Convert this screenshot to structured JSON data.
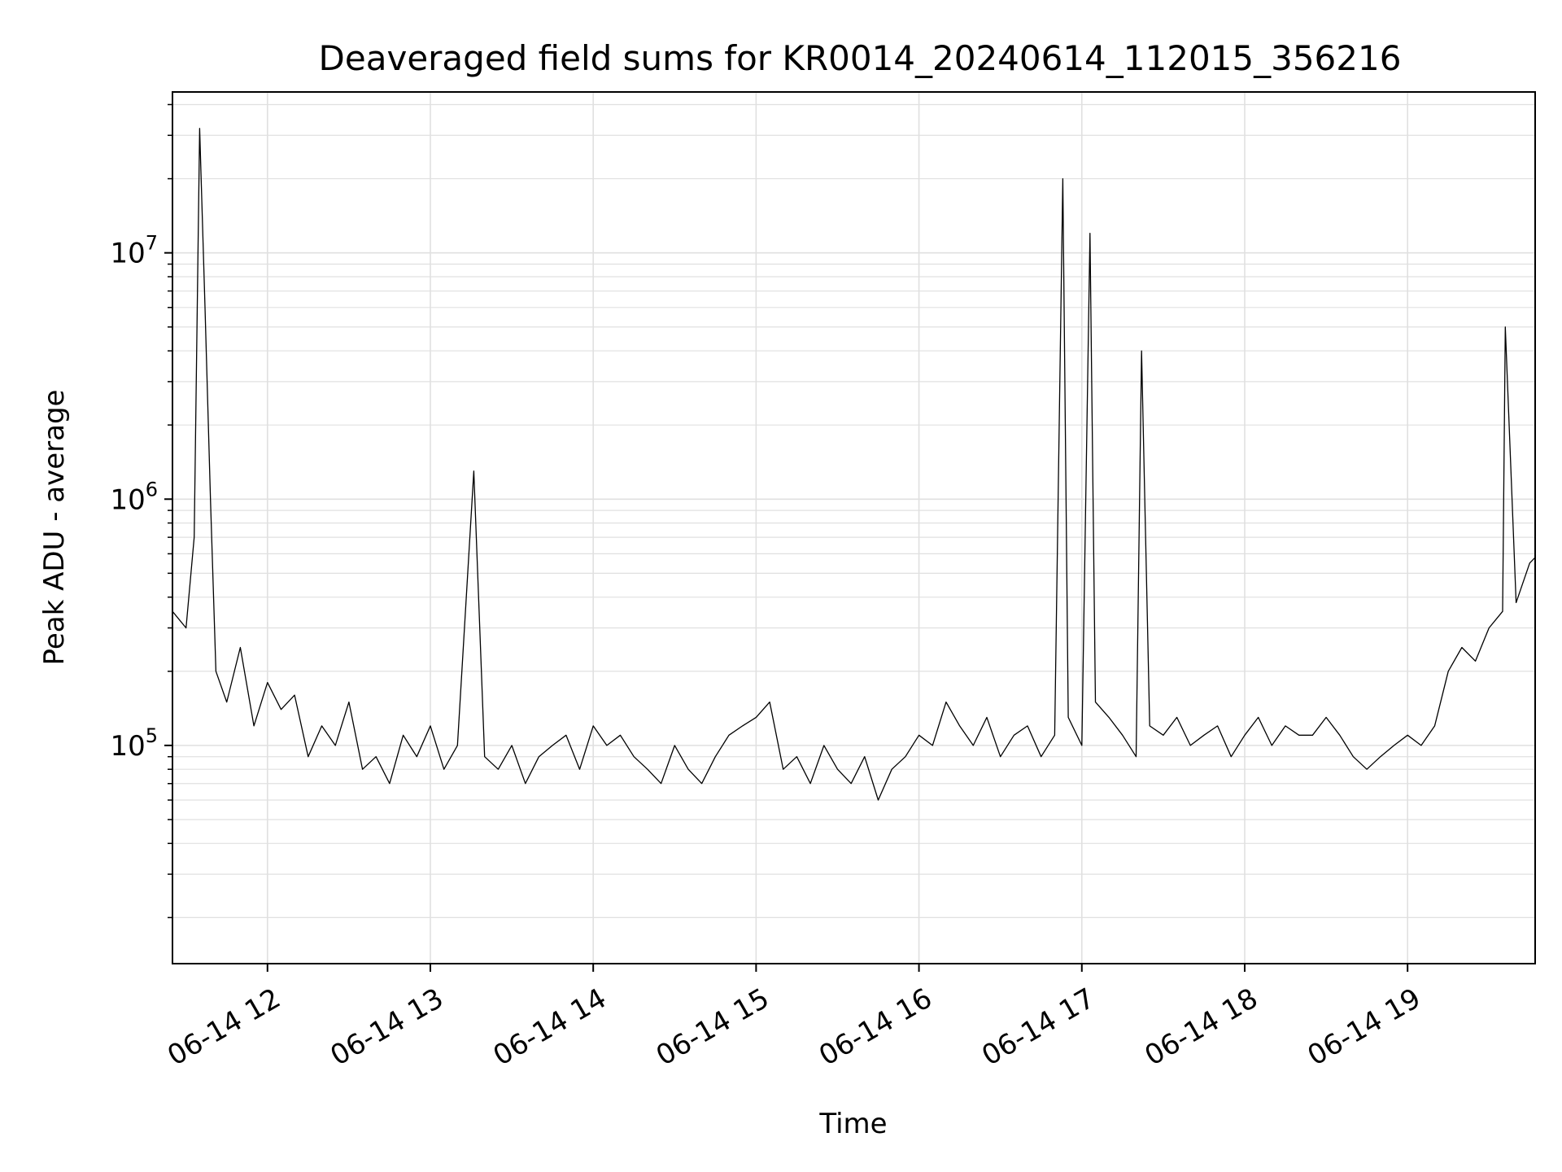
{
  "chart_data": {
    "type": "line",
    "title": "Deaveraged field sums for KR0014_20240614_112015_356216",
    "xlabel": "Time",
    "ylabel": "Peak ADU - average",
    "x_range": [
      "2024-06-14 11:25",
      "2024-06-14 19:47"
    ],
    "yscale": "log",
    "ylim": [
      13000,
      45000000
    ],
    "grid": true,
    "legend": "none",
    "x_tick_labels": [
      "06-14 12",
      "06-14 13",
      "06-14 14",
      "06-14 15",
      "06-14 16",
      "06-14 17",
      "06-14 18",
      "06-14 19"
    ],
    "y_tick_labels": [
      {
        "base": "10",
        "exp": "5",
        "value": 100000
      },
      {
        "base": "10",
        "exp": "6",
        "value": 1000000
      },
      {
        "base": "10",
        "exp": "7",
        "value": 10000000
      }
    ],
    "colors": {
      "line": "#000000",
      "grid": "#e0e0e0",
      "axes": "#000000"
    },
    "series": [
      {
        "x": [
          "2024-06-14 11:25",
          "2024-06-14 11:30",
          "2024-06-14 11:33",
          "2024-06-14 11:35",
          "2024-06-14 11:37",
          "2024-06-14 11:39",
          "2024-06-14 11:41",
          "2024-06-14 11:45",
          "2024-06-14 11:50",
          "2024-06-14 11:55",
          "2024-06-14 12:00",
          "2024-06-14 12:05",
          "2024-06-14 12:10",
          "2024-06-14 12:15",
          "2024-06-14 12:20",
          "2024-06-14 12:25",
          "2024-06-14 12:30",
          "2024-06-14 12:35",
          "2024-06-14 12:40",
          "2024-06-14 12:45",
          "2024-06-14 12:50",
          "2024-06-14 12:55",
          "2024-06-14 13:00",
          "2024-06-14 13:05",
          "2024-06-14 13:10",
          "2024-06-14 13:16",
          "2024-06-14 13:20",
          "2024-06-14 13:25",
          "2024-06-14 13:30",
          "2024-06-14 13:35",
          "2024-06-14 13:40",
          "2024-06-14 13:45",
          "2024-06-14 13:50",
          "2024-06-14 13:55",
          "2024-06-14 14:00",
          "2024-06-14 14:05",
          "2024-06-14 14:10",
          "2024-06-14 14:15",
          "2024-06-14 14:20",
          "2024-06-14 14:25",
          "2024-06-14 14:30",
          "2024-06-14 14:35",
          "2024-06-14 14:40",
          "2024-06-14 14:45",
          "2024-06-14 14:50",
          "2024-06-14 14:55",
          "2024-06-14 15:00",
          "2024-06-14 15:05",
          "2024-06-14 15:10",
          "2024-06-14 15:15",
          "2024-06-14 15:20",
          "2024-06-14 15:25",
          "2024-06-14 15:30",
          "2024-06-14 15:35",
          "2024-06-14 15:40",
          "2024-06-14 15:45",
          "2024-06-14 15:50",
          "2024-06-14 15:55",
          "2024-06-14 16:00",
          "2024-06-14 16:05",
          "2024-06-14 16:10",
          "2024-06-14 16:15",
          "2024-06-14 16:20",
          "2024-06-14 16:25",
          "2024-06-14 16:30",
          "2024-06-14 16:35",
          "2024-06-14 16:40",
          "2024-06-14 16:45",
          "2024-06-14 16:50",
          "2024-06-14 16:53",
          "2024-06-14 16:55",
          "2024-06-14 17:00",
          "2024-06-14 17:03",
          "2024-06-14 17:05",
          "2024-06-14 17:10",
          "2024-06-14 17:15",
          "2024-06-14 17:20",
          "2024-06-14 17:22",
          "2024-06-14 17:25",
          "2024-06-14 17:30",
          "2024-06-14 17:35",
          "2024-06-14 17:40",
          "2024-06-14 17:45",
          "2024-06-14 17:50",
          "2024-06-14 17:55",
          "2024-06-14 18:00",
          "2024-06-14 18:05",
          "2024-06-14 18:10",
          "2024-06-14 18:15",
          "2024-06-14 18:20",
          "2024-06-14 18:25",
          "2024-06-14 18:30",
          "2024-06-14 18:35",
          "2024-06-14 18:40",
          "2024-06-14 18:45",
          "2024-06-14 18:50",
          "2024-06-14 18:55",
          "2024-06-14 19:00",
          "2024-06-14 19:05",
          "2024-06-14 19:10",
          "2024-06-14 19:15",
          "2024-06-14 19:20",
          "2024-06-14 19:25",
          "2024-06-14 19:30",
          "2024-06-14 19:35",
          "2024-06-14 19:36",
          "2024-06-14 19:40",
          "2024-06-14 19:45",
          "2024-06-14 19:47"
        ],
        "y": [
          350000,
          300000,
          700000,
          32000000,
          6000000,
          1000000,
          200000,
          150000,
          250000,
          120000,
          180000,
          140000,
          160000,
          90000,
          120000,
          100000,
          150000,
          80000,
          90000,
          70000,
          110000,
          90000,
          120000,
          80000,
          100000,
          1300000,
          90000,
          80000,
          100000,
          70000,
          90000,
          100000,
          110000,
          80000,
          120000,
          100000,
          110000,
          90000,
          80000,
          70000,
          100000,
          80000,
          70000,
          90000,
          110000,
          120000,
          130000,
          150000,
          80000,
          90000,
          70000,
          100000,
          80000,
          70000,
          90000,
          60000,
          80000,
          90000,
          110000,
          100000,
          150000,
          120000,
          100000,
          130000,
          90000,
          110000,
          120000,
          90000,
          110000,
          20000000,
          130000,
          100000,
          12000000,
          150000,
          130000,
          110000,
          90000,
          4000000,
          120000,
          110000,
          130000,
          100000,
          110000,
          120000,
          90000,
          110000,
          130000,
          100000,
          120000,
          110000,
          110000,
          130000,
          110000,
          90000,
          80000,
          90000,
          100000,
          110000,
          100000,
          120000,
          200000,
          250000,
          220000,
          300000,
          350000,
          5000000,
          380000,
          550000,
          580000
        ]
      }
    ]
  }
}
